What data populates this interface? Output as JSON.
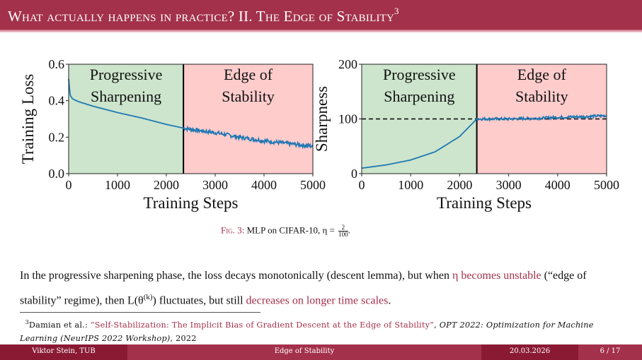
{
  "header": {
    "title": "What actually happens in practice? II. The Edge of Stability",
    "footnote_mark": "3"
  },
  "colors": {
    "brand": "#a3314b",
    "brand_dark": "#8a1a34",
    "green_region": "#cce5cc",
    "red_region": "#ffcccc",
    "line": "#1f77b4"
  },
  "chart_data": [
    {
      "type": "line",
      "title": "",
      "xlabel": "Training Steps",
      "ylabel": "Training Loss",
      "xlim": [
        0,
        5000
      ],
      "ylim": [
        0,
        0.6
      ],
      "xticks": [
        "0",
        "1000",
        "2000",
        "3000",
        "4000",
        "5000"
      ],
      "yticks": [
        "0.0",
        "0.2",
        "0.4",
        "0.6"
      ],
      "regions": [
        {
          "label": [
            "Progressive",
            "Sharpening"
          ],
          "from": 0,
          "to": 2350,
          "color": "green"
        },
        {
          "label": [
            "Edge of",
            "Stability"
          ],
          "from": 2350,
          "to": 5000,
          "color": "red"
        }
      ],
      "series": [
        {
          "name": "Training Loss",
          "x": [
            0,
            30,
            80,
            200,
            500,
            1000,
            1500,
            2000,
            2350,
            2700,
            3000,
            3500,
            4000,
            4500,
            5000
          ],
          "y": [
            0.52,
            0.43,
            0.41,
            0.395,
            0.37,
            0.335,
            0.305,
            0.27,
            0.25,
            0.235,
            0.225,
            0.2,
            0.18,
            0.165,
            0.15
          ]
        }
      ],
      "noise_after": 2350
    },
    {
      "type": "line",
      "title": "",
      "xlabel": "Training Steps",
      "ylabel": "Sharpness",
      "xlim": [
        0,
        5000
      ],
      "ylim": [
        0,
        200
      ],
      "xticks": [
        "0",
        "1000",
        "2000",
        "3000",
        "4000",
        "5000"
      ],
      "yticks": [
        "0",
        "100",
        "200"
      ],
      "hline": 100,
      "regions": [
        {
          "label": [
            "Progressive",
            "Sharpening"
          ],
          "from": 0,
          "to": 2350,
          "color": "green"
        },
        {
          "label": [
            "Edge of",
            "Stability"
          ],
          "from": 2350,
          "to": 5000,
          "color": "red"
        }
      ],
      "series": [
        {
          "name": "Sharpness",
          "x": [
            0,
            500,
            1000,
            1500,
            2000,
            2350,
            2600,
            3000,
            3500,
            4000,
            4500,
            5000
          ],
          "y": [
            10,
            16,
            25,
            40,
            68,
            100,
            100,
            100,
            101,
            103,
            104,
            106
          ]
        }
      ],
      "noise_after": 2350
    }
  ],
  "caption": {
    "label": "Fig. 3:",
    "text": "MLP on CIFAR-10, η = ",
    "frac_num": "2",
    "frac_den": "100",
    "end": "."
  },
  "body": {
    "p1": "In the progressive sharpening phase, the loss decays monotonically (descent lemma), but when ",
    "hl1": "η becomes unstable",
    "p2": " (“edge of stability” regime), then L(θ",
    "sup": "(k)",
    "p3": ") fluctuates, but still ",
    "hl2": "decreases on longer time scales",
    "p4": "."
  },
  "footnote": {
    "mark": "3",
    "authors": "Damian et al.: ",
    "title": "“Self-Stabilization: The Implicit Bias of Gradient Descent at the Edge of Stability”",
    "venue": ", OPT 2022: Optimization for Machine Learning (NeurIPS 2022 Workshop)",
    "year": ", 2022"
  },
  "footer": {
    "author": "Viktor Stein, TUB",
    "talk": "Edge of Stability",
    "date": "20.03.2026",
    "page": "6 / 17"
  }
}
